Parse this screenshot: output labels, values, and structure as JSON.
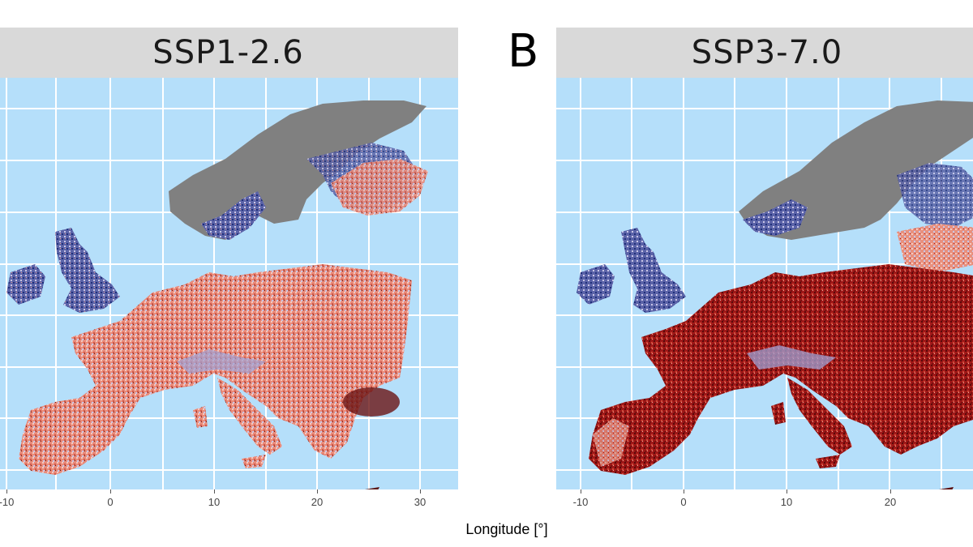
{
  "panels": [
    {
      "scenario": "SSP1-2.6",
      "letter": "",
      "x_ticks": [
        "-10",
        "0",
        "10",
        "20",
        "30"
      ],
      "warming": "moderate"
    },
    {
      "scenario": "SSP3-7.0",
      "letter": "B",
      "x_ticks": [
        "-10",
        "0",
        "10",
        "20"
      ],
      "warming": "strong"
    }
  ],
  "x_axis_label": "Longitude [°]",
  "colors": {
    "ocean": "#b5dffa",
    "strip": "#d9d9d9",
    "grid": "#ffffff",
    "no_data": "#7f7f7f",
    "cool": "#1f2f7a",
    "neutral": "#e8e4f0",
    "warm_light": "#f2a090",
    "warm": "#e0624f",
    "warm_dark": "#8a0f0f"
  }
}
